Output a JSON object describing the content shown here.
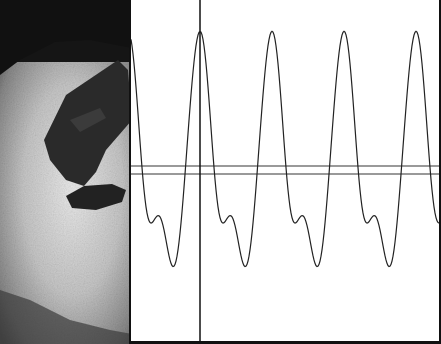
{
  "figure": {
    "photo": {
      "description_icon": "probe-photo-icon",
      "background_color": "#1a1a1a",
      "highlight_color": "#d9d9d9",
      "probe_color": "#2a2a2a"
    },
    "plot": {
      "line_color": "#222222",
      "background_color": "#ffffff",
      "marker_color": "#111111"
    }
  }
}
